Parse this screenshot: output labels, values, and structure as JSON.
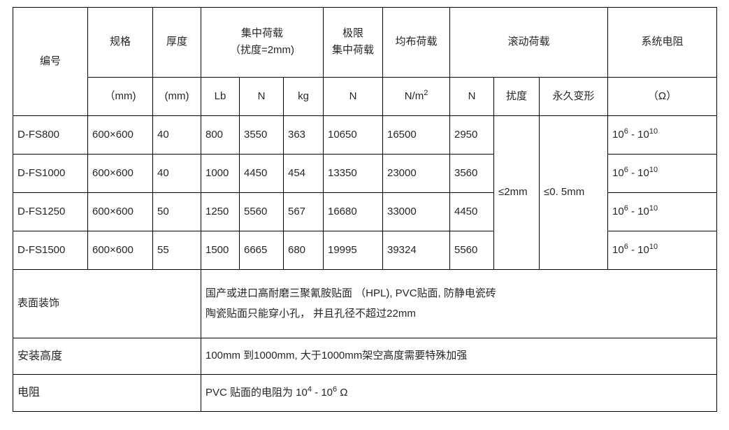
{
  "table": {
    "header": {
      "id_label": "编号",
      "spec": {
        "title": "规格",
        "unit": "（mm)"
      },
      "thickness": {
        "title": "厚度",
        "unit": "(mm)"
      },
      "concentrated_load": {
        "title": "集中荷载",
        "subtitle": "（扰度=2mm)",
        "unit_lb": "Lb",
        "unit_n": "N",
        "unit_kg": "kg"
      },
      "ultimate_load": {
        "title_line1": "极限",
        "title_line2": "集中荷载",
        "unit": "N"
      },
      "distributed_load": {
        "title": "均布荷载",
        "unit": "N/m^2"
      },
      "rolling_load": {
        "title": "滚动荷载",
        "unit_n": "N",
        "unit_deflection": "扰度",
        "unit_deformation": "永久变形"
      },
      "system_resistance": {
        "title": "系统电阻",
        "unit": "（Ω）"
      }
    },
    "rows": [
      {
        "id": "D-FS800",
        "spec": "600×600",
        "thickness": "40",
        "lb": "800",
        "n": "3550",
        "kg": "363",
        "ultimate_n": "10650",
        "distributed": "16500",
        "rolling_n": "2950",
        "resistance": "10^6 - 10^10"
      },
      {
        "id": "D-FS1000",
        "spec": "600×600",
        "thickness": "40",
        "lb": "1000",
        "n": "4450",
        "kg": "454",
        "ultimate_n": "13350",
        "distributed": "23000",
        "rolling_n": "3560",
        "resistance": "10^6 - 10^10"
      },
      {
        "id": "D-FS1250",
        "spec": "600×600",
        "thickness": "50",
        "lb": "1250",
        "n": "5560",
        "kg": "567",
        "ultimate_n": "16680",
        "distributed": "33000",
        "rolling_n": "4450",
        "resistance": "10^6 - 10^10"
      },
      {
        "id": "D-FS1500",
        "spec": "600×600",
        "thickness": "55",
        "lb": "1500",
        "n": "6665",
        "kg": "680",
        "ultimate_n": "19995",
        "distributed": "39324",
        "rolling_n": "5560",
        "resistance": "10^6 - 10^10"
      }
    ],
    "merged": {
      "deflection": "≤2mm",
      "permanent_deformation": "≤0. 5mm"
    },
    "footer": {
      "surface": {
        "label": "表面装饰",
        "line1": "国产或进口高耐磨三聚氰胺贴面 （HPL), PVC贴面, 防静电瓷砖",
        "line2": "陶瓷贴面只能穿小孔， 并且孔径不超过22mm"
      },
      "install_height": {
        "label": "安装高度",
        "line1": "100mm 到1000mm, 大于1000mm架空高度需要特殊加强"
      },
      "resistance": {
        "label": "电阻",
        "line1": "PVC 贴面的电阻为 10^4 - 10^6 Ω"
      }
    }
  }
}
